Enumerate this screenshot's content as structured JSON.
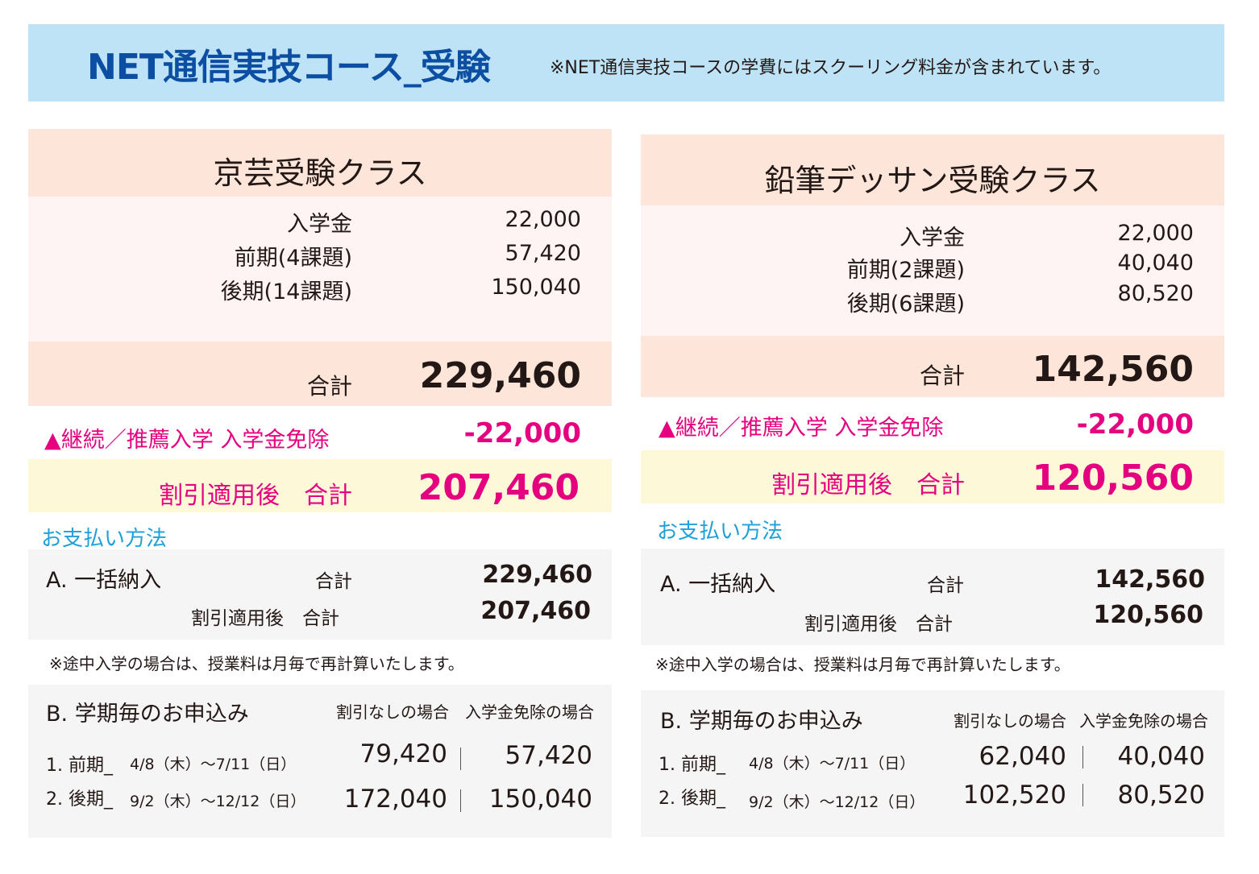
{
  "header": {
    "title": "NET通信実技コース_受験",
    "note": "※NET通信実技コースの学費にはスクーリング料金が含まれています。"
  },
  "classes": [
    {
      "title": "京芸受験クラス",
      "fees": [
        {
          "label": "入学金",
          "value": "22,000"
        },
        {
          "label": "前期(4課題)",
          "value": "57,420"
        },
        {
          "label": "後期(14課題)",
          "value": "150,040"
        }
      ],
      "total_label": "合計",
      "total_value": "229,460",
      "discount_label": "▲継続／推薦入学 入学金免除",
      "discount_value": "-22,000",
      "after_label": "割引適用後　合計",
      "after_value": "207,460",
      "payment_heading": "お支払い方法",
      "method_a": {
        "title": "A. 一括納入",
        "total_label": "合計",
        "total_value": "229,460",
        "after_label": "割引適用後　合計",
        "after_value": "207,460"
      },
      "note": "※途中入学の場合は、授業料は月毎で再計算いたします。",
      "method_b": {
        "title": "B. 学期毎のお申込み",
        "col1": "割引なしの場合",
        "col2": "入学金免除の場合",
        "terms": [
          {
            "name": "1. 前期_",
            "dates": "4/8（木）〜7/11（日）",
            "v1": "79,420",
            "v2": "57,420"
          },
          {
            "name": "2. 後期_",
            "dates": "9/2（木）〜12/12（日）",
            "v1": "172,040",
            "v2": "150,040"
          }
        ]
      }
    },
    {
      "title": "鉛筆デッサン受験クラス",
      "fees": [
        {
          "label": "入学金",
          "value": "22,000"
        },
        {
          "label": "前期(2課題)",
          "value": "40,040"
        },
        {
          "label": "後期(6課題)",
          "value": "80,520"
        }
      ],
      "total_label": "合計",
      "total_value": "142,560",
      "discount_label": "▲継続／推薦入学 入学金免除",
      "discount_value": "-22,000",
      "after_label": "割引適用後　合計",
      "after_value": "120,560",
      "payment_heading": "お支払い方法",
      "method_a": {
        "title": "A. 一括納入",
        "total_label": "合計",
        "total_value": "142,560",
        "after_label": "割引適用後　合計",
        "after_value": "120,560"
      },
      "note": "※途中入学の場合は、授業料は月毎で再計算いたします。",
      "method_b": {
        "title": "B. 学期毎のお申込み",
        "col1": "割引なしの場合",
        "col2": "入学金免除の場合",
        "terms": [
          {
            "name": "1. 前期_",
            "dates": "4/8（木）〜7/11（日）",
            "v1": "62,040",
            "v2": "40,040"
          },
          {
            "name": "2. 後期_",
            "dates": "9/2（木）〜12/12（日）",
            "v1": "102,520",
            "v2": "80,520"
          }
        ]
      }
    }
  ]
}
